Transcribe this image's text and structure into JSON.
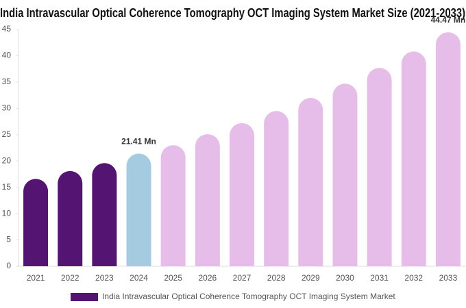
{
  "chart_data": {
    "type": "bar",
    "title": "India Intravascular Optical Coherence Tomography OCT Imaging System Market Size (2021-2033)",
    "categories": [
      "2021",
      "2022",
      "2023",
      "2024",
      "2025",
      "2026",
      "2027",
      "2028",
      "2029",
      "2030",
      "2031",
      "2032",
      "2033"
    ],
    "series": [
      {
        "name": "India Intravascular Optical Coherence Tomography OCT Imaging System Market",
        "color": "#541472",
        "values": [
          16.6,
          18.1,
          19.6,
          21.41,
          23.0,
          25.1,
          27.2,
          29.5,
          32.0,
          34.7,
          37.7,
          40.8,
          44.47
        ],
        "value_labels": [
          null,
          null,
          null,
          "21.41 Mn",
          null,
          null,
          null,
          null,
          null,
          null,
          null,
          null,
          "44.47 Mn"
        ],
        "colors": [
          "#541472",
          "#541472",
          "#541472",
          "#a4cbdf",
          "#e6bde9",
          "#e6bde9",
          "#e6bde9",
          "#e6bde9",
          "#e6bde9",
          "#e6bde9",
          "#e6bde9",
          "#e6bde9",
          "#e6bde9"
        ]
      }
    ],
    "ylim": [
      0,
      45
    ],
    "yticks": [
      0,
      5,
      10,
      15,
      20,
      25,
      30,
      35,
      40,
      45
    ],
    "grid": false,
    "legend": "bottom"
  }
}
